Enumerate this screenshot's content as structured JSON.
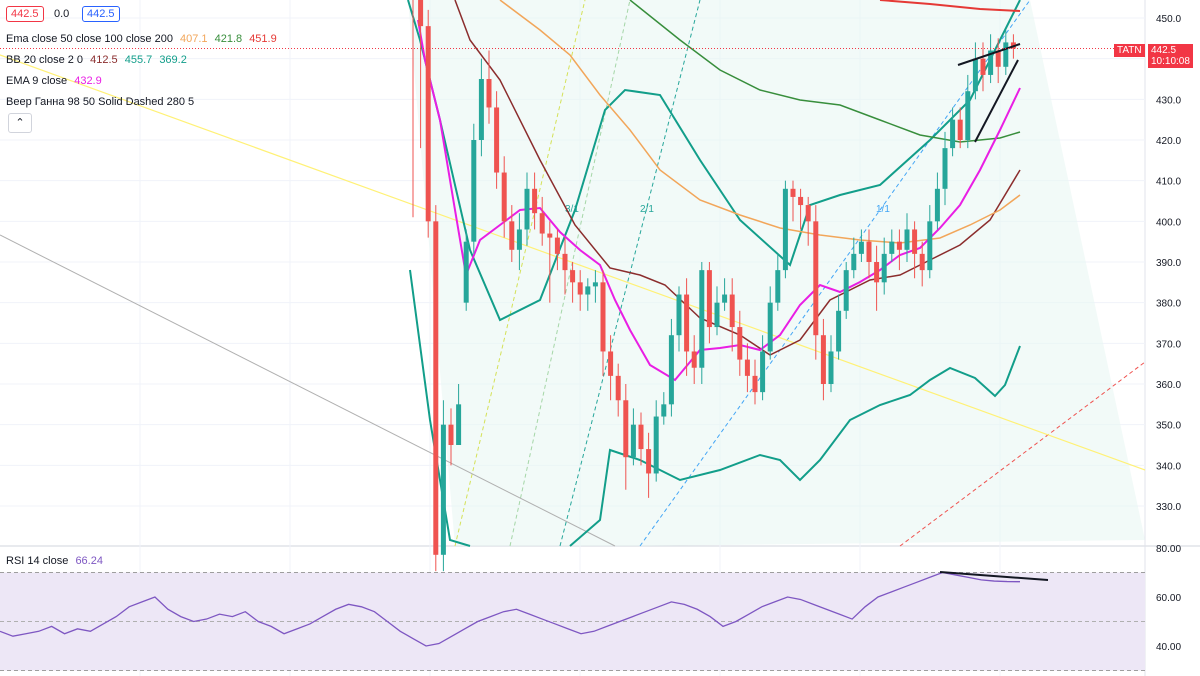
{
  "header": {
    "price_left": "442.5",
    "change": "0.0",
    "price_right": "442.5"
  },
  "legend": {
    "ema": {
      "label": "Ema close 50 close 100 close 200",
      "v50": "407.1",
      "v100": "421.8",
      "v200": "451.9"
    },
    "bb": {
      "label": "BB 20 close 2 0",
      "basis": "412.5",
      "upper": "455.7",
      "lower": "369.2"
    },
    "ema9": {
      "label": "EMA 9 close",
      "value": "432.9"
    },
    "gann": {
      "label": "Веер Ганна 98 50 Solid Dashed 280 5"
    },
    "rsi": {
      "label": "RSI 14 close",
      "value": "66.24"
    },
    "collapse_glyph": "⌃"
  },
  "price_axis": {
    "ticks": [
      "450.0",
      "440.0",
      "430.0",
      "420.0",
      "410.0",
      "400.0",
      "390.0",
      "380.0",
      "370.0",
      "360.0",
      "350.0",
      "340.0",
      "330.0"
    ],
    "ticker_tag": "TATN",
    "current_price": "442.5",
    "countdown": "10:10:08"
  },
  "rsi_axis": {
    "ticks": [
      "80.00",
      "60.00",
      "40.00"
    ]
  },
  "gann_labels": [
    "3/1",
    "2/1",
    "1/1"
  ],
  "colors": {
    "up": "#26a69a",
    "down": "#ef5350",
    "ema9": "#e91ee4",
    "ema50": "#f2a65a",
    "ema100": "#388e3c",
    "ema200": "#e53935",
    "bb": "#129e8a",
    "bb_basis": "#8b2d2d",
    "rsi": "#7e57c2",
    "rsi_band": "#ede7f6"
  },
  "chart_data": {
    "type": "candlestick",
    "ylim": [
      322,
      454
    ],
    "candles": [
      [
        460,
        458,
        466,
        401
      ],
      [
        458,
        448,
        456,
        418
      ],
      [
        448,
        400,
        452,
        396
      ],
      [
        400,
        318,
        404,
        314
      ],
      [
        318,
        350,
        356,
        314
      ],
      [
        350,
        345,
        354,
        340
      ],
      [
        345,
        355,
        360,
        352
      ],
      [
        380,
        395,
        398,
        378
      ],
      [
        395,
        420,
        424,
        392
      ],
      [
        420,
        435,
        440,
        416
      ],
      [
        435,
        428,
        442,
        424
      ],
      [
        428,
        412,
        432,
        408
      ],
      [
        412,
        400,
        416,
        396
      ],
      [
        400,
        393,
        404,
        390
      ],
      [
        393,
        398,
        402,
        388
      ],
      [
        398,
        408,
        412,
        394
      ],
      [
        408,
        402,
        412,
        398
      ],
      [
        402,
        397,
        406,
        394
      ],
      [
        397,
        396,
        400,
        380
      ],
      [
        396,
        392,
        398,
        388
      ],
      [
        392,
        388,
        396,
        382
      ],
      [
        388,
        385,
        390,
        380
      ],
      [
        385,
        382,
        388,
        378
      ],
      [
        382,
        384,
        386,
        378
      ],
      [
        384,
        385,
        388,
        380
      ],
      [
        385,
        368,
        388,
        362
      ],
      [
        368,
        362,
        372,
        356
      ],
      [
        362,
        356,
        365,
        352
      ],
      [
        356,
        342,
        360,
        334
      ],
      [
        342,
        350,
        354,
        340
      ],
      [
        350,
        344,
        353,
        340
      ],
      [
        344,
        338,
        348,
        332
      ],
      [
        338,
        352,
        356,
        336
      ],
      [
        352,
        355,
        358,
        350
      ],
      [
        355,
        372,
        376,
        352
      ],
      [
        372,
        382,
        384,
        368
      ],
      [
        382,
        368,
        386,
        362
      ],
      [
        368,
        364,
        372,
        360
      ],
      [
        364,
        388,
        390,
        360
      ],
      [
        388,
        374,
        390,
        370
      ],
      [
        374,
        380,
        384,
        372
      ],
      [
        380,
        382,
        386,
        378
      ],
      [
        382,
        374,
        386,
        368
      ],
      [
        374,
        366,
        378,
        362
      ],
      [
        366,
        362,
        370,
        358
      ],
      [
        362,
        358,
        366,
        355
      ],
      [
        358,
        368,
        372,
        356
      ],
      [
        368,
        380,
        384,
        366
      ],
      [
        380,
        388,
        392,
        378
      ],
      [
        388,
        408,
        410,
        386
      ],
      [
        408,
        406,
        410,
        400
      ],
      [
        406,
        404,
        408,
        398
      ],
      [
        404,
        400,
        406,
        394
      ],
      [
        400,
        372,
        404,
        366
      ],
      [
        372,
        360,
        376,
        356
      ],
      [
        360,
        368,
        372,
        358
      ],
      [
        368,
        378,
        382,
        366
      ],
      [
        378,
        388,
        390,
        376
      ],
      [
        388,
        392,
        396,
        386
      ],
      [
        392,
        395,
        398,
        390
      ],
      [
        395,
        390,
        398,
        386
      ],
      [
        390,
        385,
        394,
        378
      ],
      [
        385,
        392,
        396,
        382
      ],
      [
        392,
        395,
        398,
        390
      ],
      [
        395,
        393,
        398,
        388
      ],
      [
        393,
        398,
        402,
        390
      ],
      [
        398,
        392,
        400,
        386
      ],
      [
        392,
        388,
        395,
        384
      ],
      [
        388,
        400,
        404,
        386
      ],
      [
        400,
        408,
        412,
        398
      ],
      [
        408,
        418,
        422,
        404
      ],
      [
        418,
        425,
        428,
        416
      ],
      [
        425,
        420,
        428,
        418
      ],
      [
        420,
        432,
        436,
        418
      ],
      [
        432,
        440,
        444,
        430
      ],
      [
        440,
        436,
        444,
        432
      ],
      [
        436,
        442,
        446,
        434
      ],
      [
        442,
        438,
        445,
        434
      ],
      [
        438,
        444,
        447,
        436
      ],
      [
        444,
        442.5,
        446,
        440
      ]
    ],
    "rsi": [
      46,
      44,
      45,
      46,
      48,
      45,
      47,
      46,
      49,
      52,
      56,
      58,
      60,
      55,
      52,
      50,
      51,
      53,
      52,
      54,
      50,
      48,
      45,
      47,
      49,
      52,
      55,
      57,
      56,
      54,
      50,
      46,
      43,
      40,
      41,
      44,
      47,
      50,
      52,
      54,
      55,
      53,
      51,
      49,
      47,
      45,
      46,
      48,
      50,
      52,
      54,
      56,
      58,
      57,
      55,
      52,
      48,
      50,
      53,
      56,
      58,
      60,
      59,
      57,
      55,
      53,
      51,
      56,
      60,
      62,
      64,
      66,
      68,
      70,
      69,
      68,
      67,
      66.5,
      66.3,
      66.24
    ]
  }
}
